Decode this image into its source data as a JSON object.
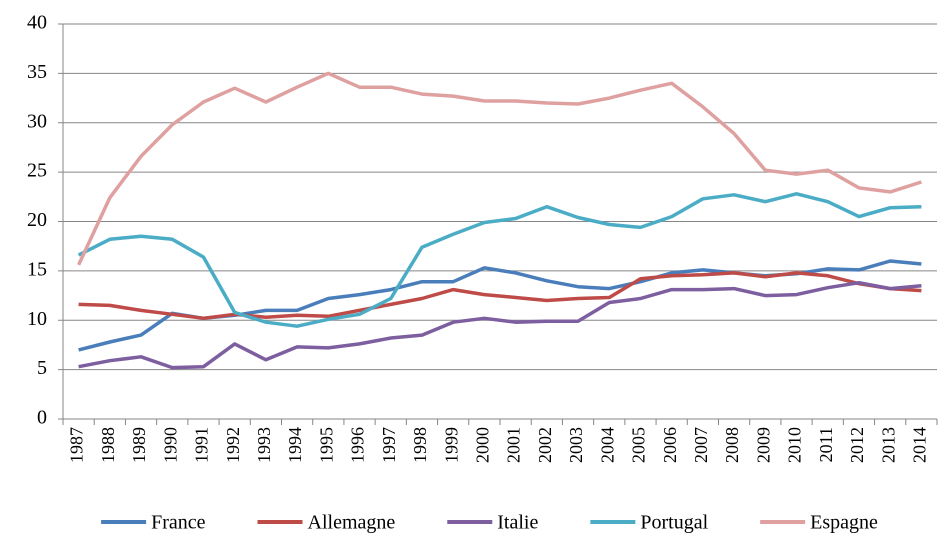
{
  "chart_data": {
    "type": "line",
    "categories": [
      "1987",
      "1988",
      "1989",
      "1990",
      "1991",
      "1992",
      "1993",
      "1994",
      "1995",
      "1996",
      "1997",
      "1998",
      "1999",
      "2000",
      "2001",
      "2002",
      "2003",
      "2004",
      "2005",
      "2006",
      "2007",
      "2008",
      "2009",
      "2010",
      "2011",
      "2012",
      "2013",
      "2014"
    ],
    "series": [
      {
        "name": "France",
        "color": "#4a7ebb",
        "values": [
          7.0,
          7.8,
          8.5,
          10.7,
          10.2,
          10.5,
          11.0,
          11.0,
          12.2,
          12.6,
          13.1,
          13.9,
          13.9,
          15.3,
          14.8,
          14.0,
          13.4,
          13.2,
          13.9,
          14.8,
          15.1,
          14.8,
          14.5,
          14.7,
          15.2,
          15.1,
          16.0,
          15.7
        ]
      },
      {
        "name": "Allemagne",
        "color": "#be4b48",
        "values": [
          11.6,
          11.5,
          11.0,
          10.6,
          10.2,
          10.6,
          10.3,
          10.5,
          10.4,
          11.0,
          11.6,
          12.2,
          13.1,
          12.6,
          12.3,
          12.0,
          12.2,
          12.3,
          14.2,
          14.5,
          14.6,
          14.8,
          14.4,
          14.8,
          14.5,
          13.7,
          13.2,
          13.0
        ]
      },
      {
        "name": "Italie",
        "color": "#7d5fa0",
        "values": [
          5.3,
          5.9,
          6.3,
          5.2,
          5.3,
          7.6,
          6.0,
          7.3,
          7.2,
          7.6,
          8.2,
          8.5,
          9.8,
          10.2,
          9.8,
          9.9,
          9.9,
          11.8,
          12.2,
          13.1,
          13.1,
          13.2,
          12.5,
          12.6,
          13.3,
          13.8,
          13.2,
          13.5
        ]
      },
      {
        "name": "Portugal",
        "color": "#4bacc6",
        "values": [
          16.6,
          18.2,
          18.5,
          18.2,
          16.4,
          10.8,
          9.8,
          9.4,
          10.1,
          10.6,
          12.2,
          17.4,
          18.7,
          19.9,
          20.3,
          21.5,
          20.4,
          19.7,
          19.4,
          20.5,
          22.3,
          22.7,
          22.0,
          22.8,
          22.0,
          20.5,
          21.4,
          21.5
        ]
      },
      {
        "name": "Espagne",
        "color": "#dfa0a0",
        "values": [
          15.6,
          22.4,
          26.6,
          29.8,
          32.1,
          33.5,
          32.1,
          33.6,
          35.0,
          33.6,
          33.6,
          32.9,
          32.7,
          32.2,
          32.2,
          32.0,
          31.9,
          32.5,
          33.3,
          34.0,
          31.6,
          28.9,
          25.2,
          24.8,
          25.2,
          23.4,
          23.0,
          24.0
        ]
      }
    ],
    "ylim": [
      0,
      40
    ],
    "yticks": [
      0,
      5,
      10,
      15,
      20,
      25,
      30,
      35,
      40
    ],
    "grid": true,
    "legend": "bottom"
  }
}
